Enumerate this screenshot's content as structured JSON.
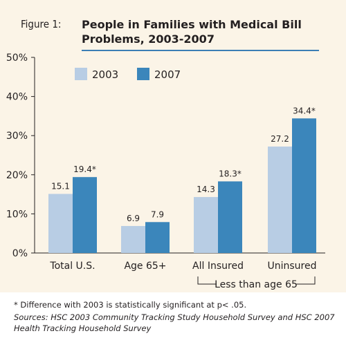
{
  "figure": {
    "label": "Figure 1:",
    "title": "People in Families with Medical Bill Problems, 2003-2007"
  },
  "chart_data": {
    "type": "bar",
    "title": "People in Families with Medical Bill Problems, 2003-2007",
    "xlabel": "",
    "ylabel": "",
    "ylim": [
      0,
      50
    ],
    "yticks": [
      "0%",
      "10%",
      "20%",
      "30%",
      "40%",
      "50%"
    ],
    "categories": [
      "Total U.S.",
      "Age 65+",
      "All Insured",
      "Uninsured"
    ],
    "series": [
      {
        "name": "2003",
        "color": "#b8cde4",
        "values": [
          15.1,
          6.9,
          14.3,
          27.2
        ],
        "labels": [
          "15.1",
          "6.9",
          "14.3",
          "27.2"
        ]
      },
      {
        "name": "2007",
        "color": "#3b86bb",
        "values": [
          19.4,
          7.9,
          18.3,
          34.4
        ],
        "labels": [
          "19.4*",
          "7.9",
          "18.3*",
          "34.4*"
        ]
      }
    ],
    "grid": false,
    "legend": "top-left",
    "group_annotation": "Less than age 65"
  },
  "footnote": "* Difference with 2003 is statistically significant at p< .05.",
  "sources": "Sources: HSC 2003 Community Tracking Study Household Survey and HSC 2007 Health Tracking Household Survey"
}
